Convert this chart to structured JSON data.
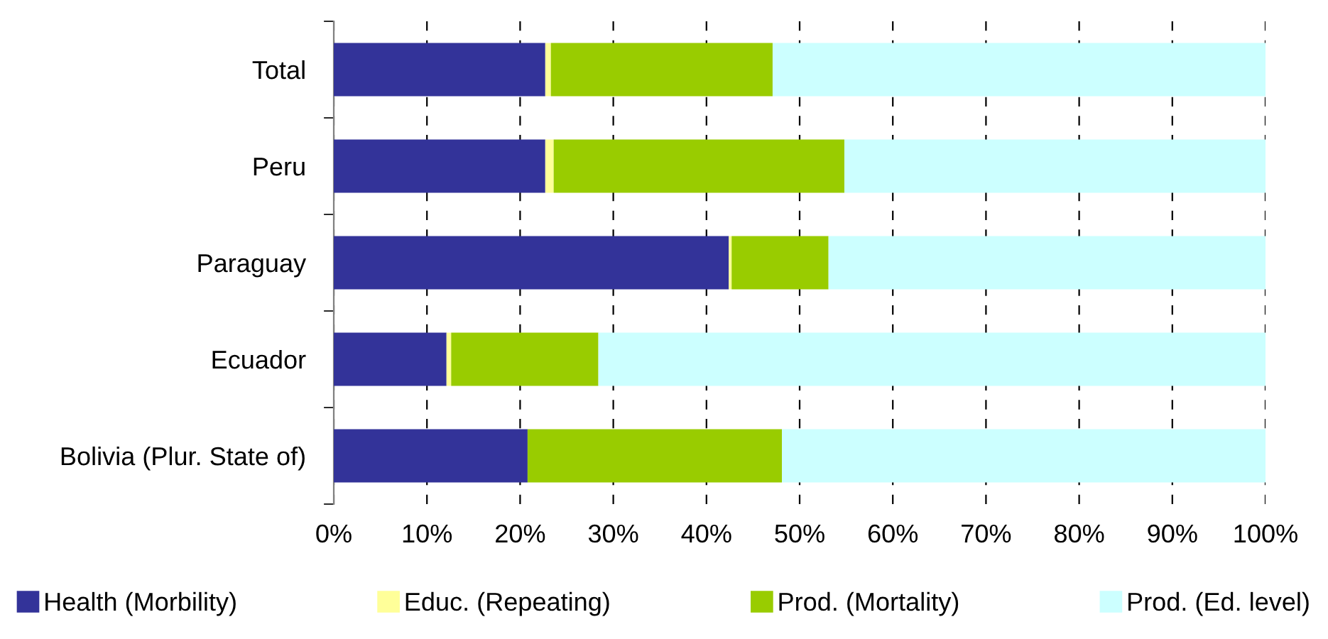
{
  "chart_data": {
    "type": "bar",
    "orientation": "horizontal",
    "stacked": true,
    "categories": [
      "Total",
      "Peru",
      "Paraguay",
      "Ecuador",
      "Bolivia (Plur. State of)"
    ],
    "series": [
      {
        "name": "Health (Morbility)",
        "color": "#333399",
        "values": [
          22.7,
          22.7,
          42.4,
          12.1,
          20.8
        ]
      },
      {
        "name": "Educ. (Repeating)",
        "color": "#ffff99",
        "values": [
          0.6,
          0.9,
          0.3,
          0.5,
          0
        ]
      },
      {
        "name": "Prod. (Mortality)",
        "color": "#99cc00",
        "values": [
          23.8,
          31.2,
          10.4,
          15.8,
          27.3
        ]
      },
      {
        "name": "Prod. (Ed. level)",
        "color": "#ccffff",
        "values": [
          52.9,
          45.2,
          46.9,
          71.6,
          51.9
        ]
      }
    ],
    "xlim": [
      0,
      100
    ],
    "xticks": [
      {
        "value": 0,
        "label": "0%"
      },
      {
        "value": 10,
        "label": "10%"
      },
      {
        "value": 20,
        "label": "20%"
      },
      {
        "value": 30,
        "label": "30%"
      },
      {
        "value": 40,
        "label": "40%"
      },
      {
        "value": 50,
        "label": "50%"
      },
      {
        "value": 60,
        "label": "60%"
      },
      {
        "value": 70,
        "label": "70%"
      },
      {
        "value": 80,
        "label": "80%"
      },
      {
        "value": 90,
        "label": "90%"
      },
      {
        "value": 100,
        "label": "100%"
      }
    ],
    "grid": "x",
    "legend": "bottom"
  }
}
